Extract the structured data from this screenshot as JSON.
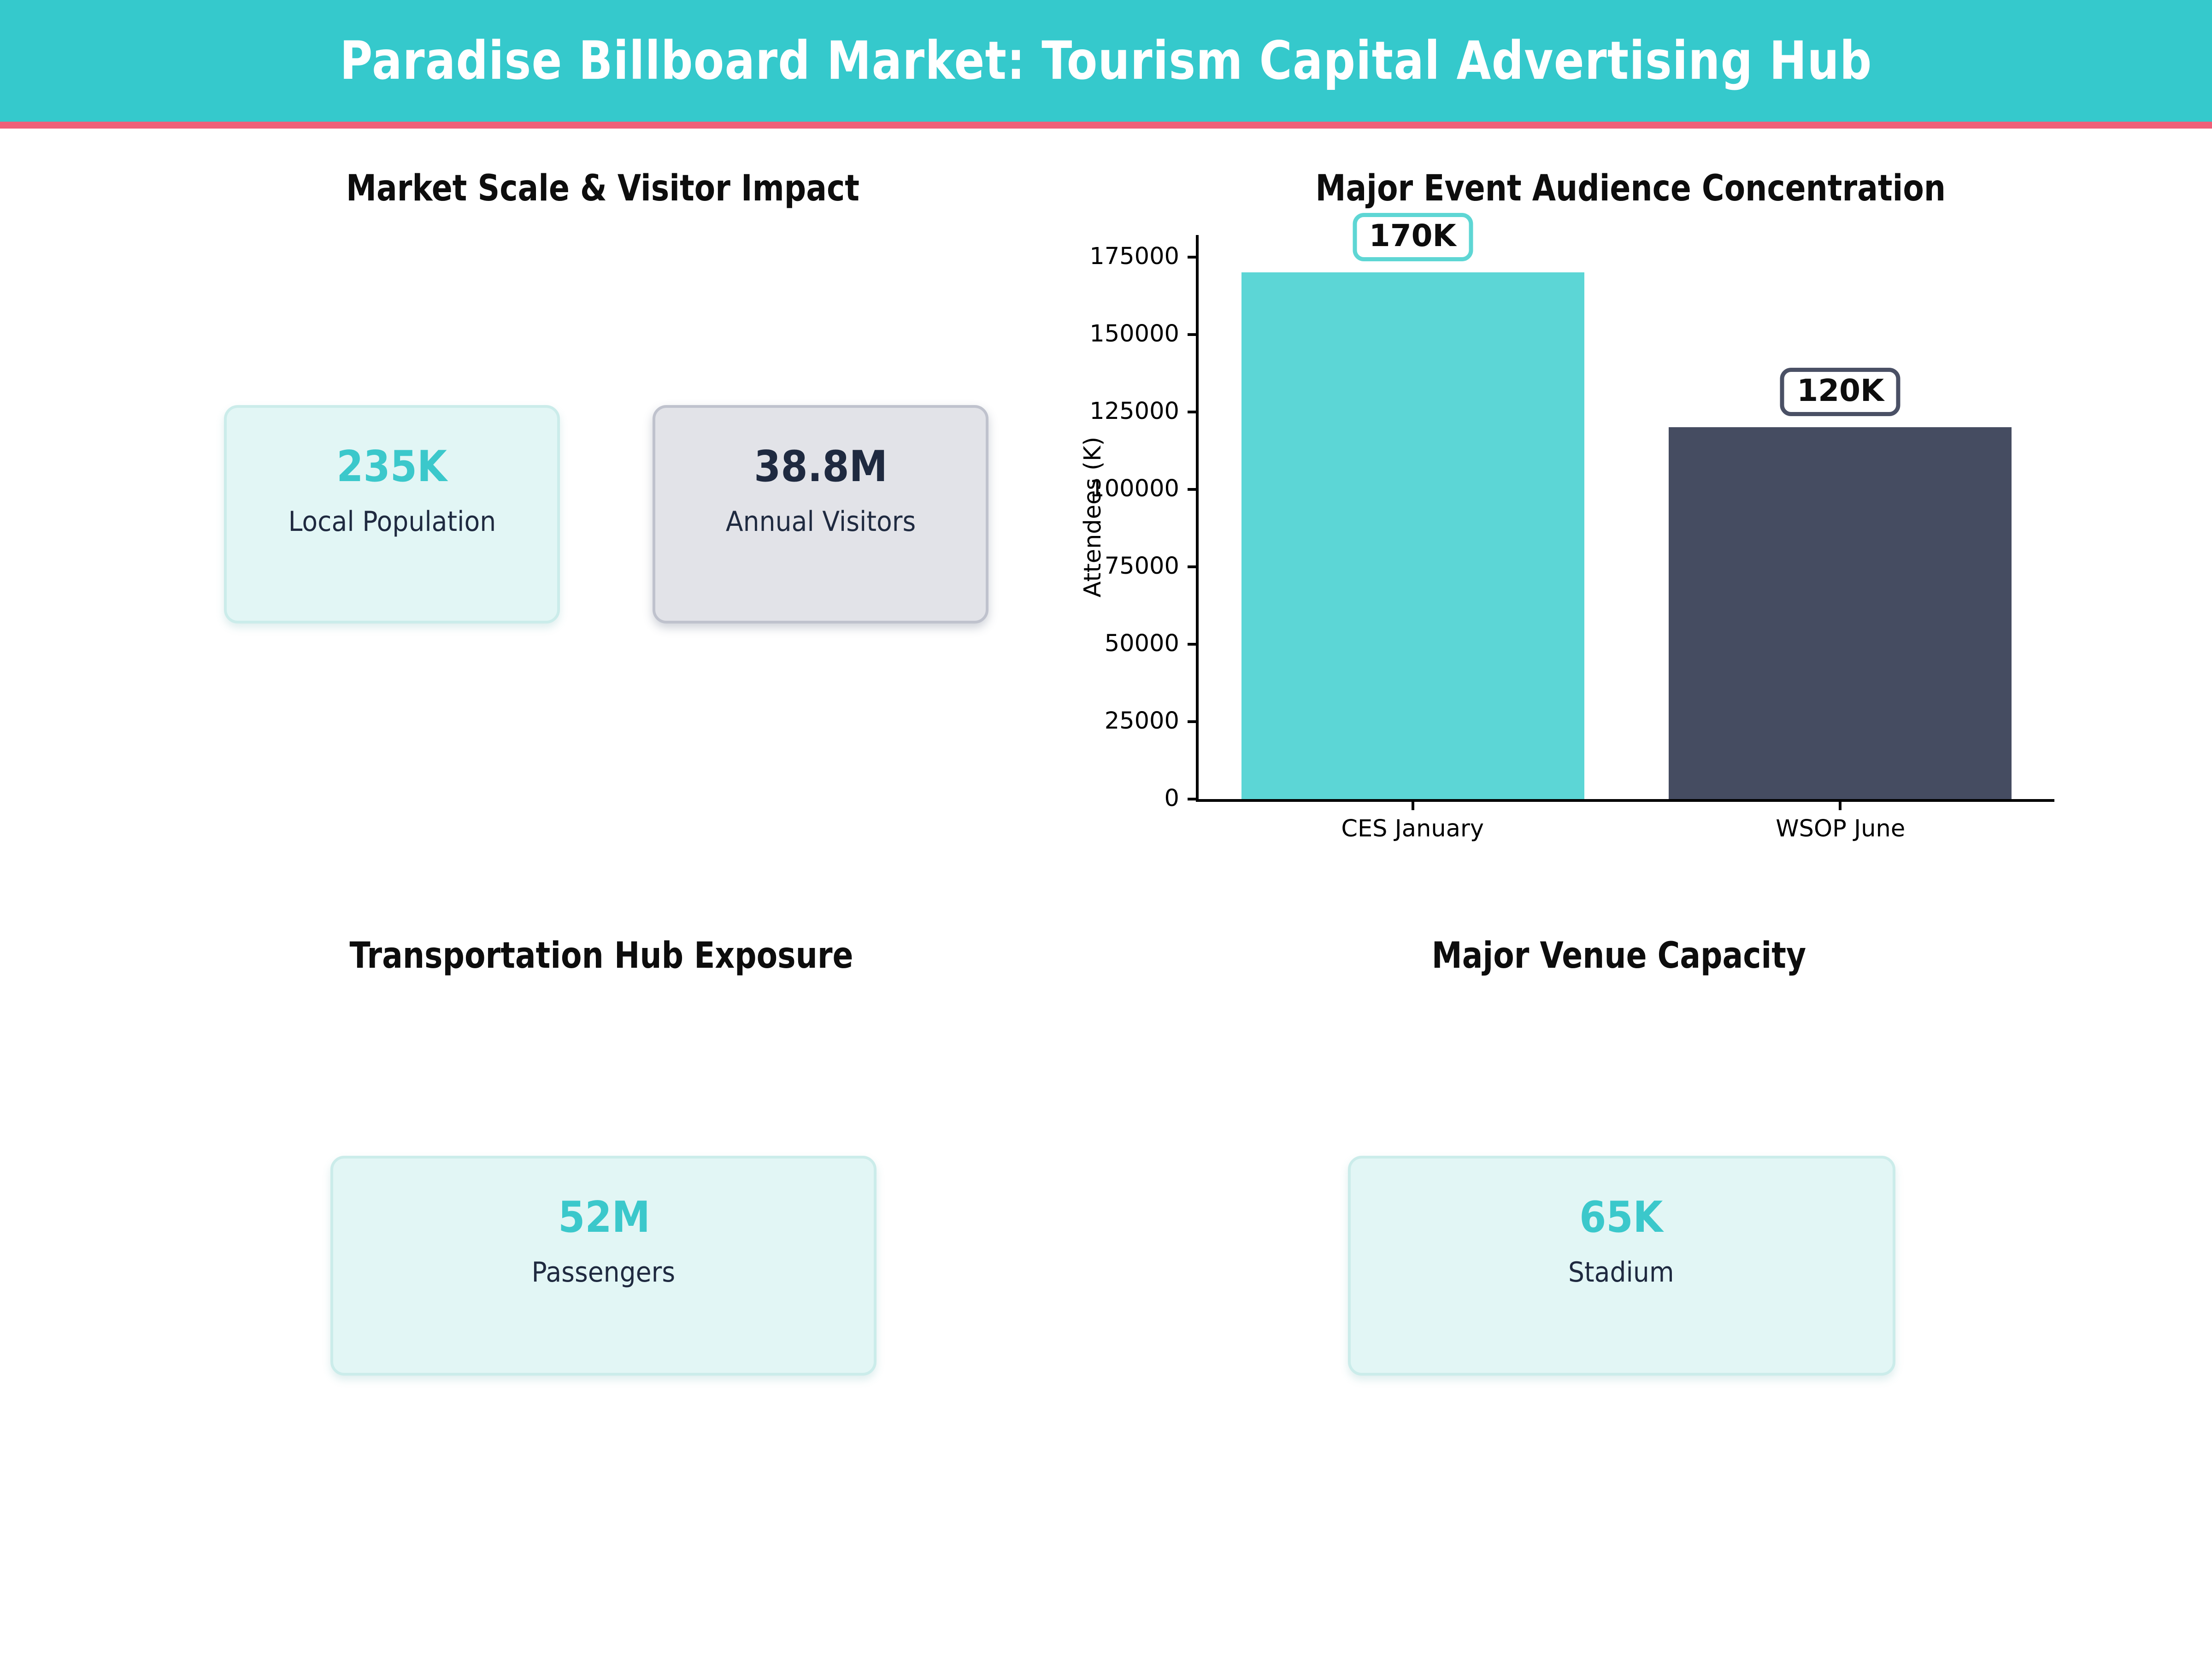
{
  "header": {
    "title": "Paradise Billboard Market: Tourism Capital Advertising Hub"
  },
  "colors": {
    "header_bg": "#35c9cc",
    "header_accent_bar": "#ef5f78",
    "teal_accent": "#3bc8cb",
    "navy_text": "#1f2a40",
    "bar_teal": "#5cd6d6",
    "bar_navy": "#454c61",
    "card_teal_bg": "#e2f6f5",
    "card_gray_bg": "#e2e3e8"
  },
  "sections": {
    "market": {
      "title": "Market Scale & Visitor Impact",
      "cards": [
        {
          "value": "235K",
          "label": "Local Population",
          "variant": "teal"
        },
        {
          "value": "38.8M",
          "label": "Annual Visitors",
          "variant": "gray"
        }
      ]
    },
    "transport": {
      "title": "Transportation Hub Exposure",
      "cards": [
        {
          "value": "52M",
          "label": "Passengers",
          "variant": "teal"
        }
      ]
    },
    "venue": {
      "title": "Major Venue Capacity",
      "cards": [
        {
          "value": "65K",
          "label": "Stadium",
          "variant": "teal"
        }
      ]
    }
  },
  "chart_data": {
    "type": "bar",
    "title": "Major Event Audience Concentration",
    "categories": [
      "CES January",
      "WSOP June"
    ],
    "values": [
      170000,
      120000
    ],
    "value_labels": [
      "170K",
      "120K"
    ],
    "bar_colors": [
      "#5cd6d6",
      "#454c61"
    ],
    "label_border_colors": [
      "#5ed6d4",
      "#4a5065"
    ],
    "xlabel": "",
    "ylabel": "Attendees (K)",
    "yticks": [
      0,
      25000,
      50000,
      75000,
      100000,
      125000,
      150000,
      175000
    ],
    "ylim": [
      0,
      182000
    ],
    "grid": false,
    "legend": "none"
  }
}
